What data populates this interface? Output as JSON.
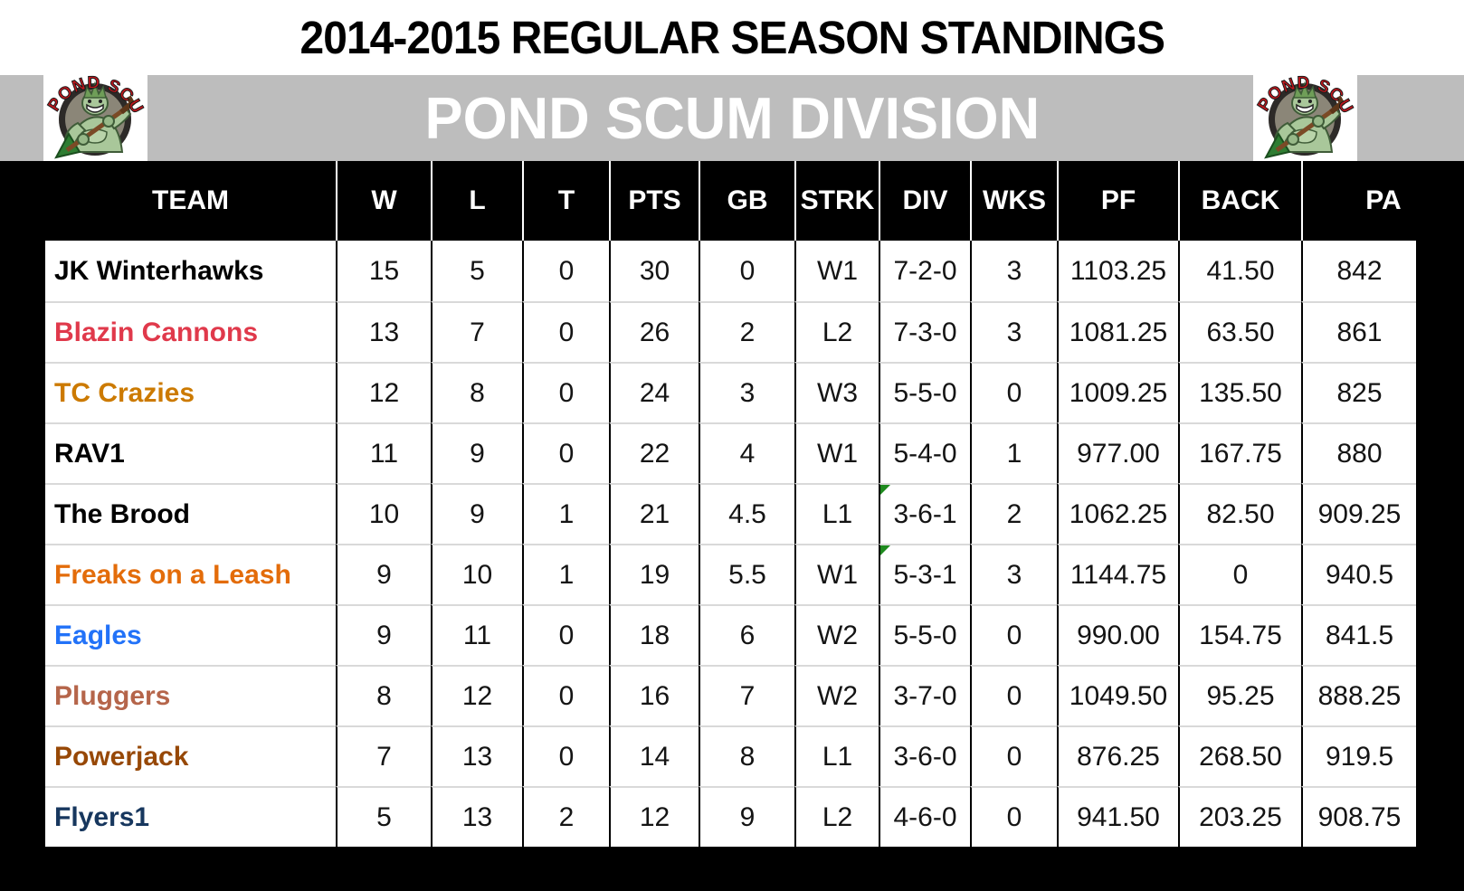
{
  "title": "2014-2015 REGULAR SEASON STANDINGS",
  "division": {
    "name": "POND SCUM DIVISION"
  },
  "logo": {
    "text": "POND SCUM"
  },
  "colors": {
    "band_gray": "#BDBDBD",
    "header_bg": "#000000",
    "header_text": "#FFFFFF",
    "grid_line_gray": "#D9D9D9",
    "grid_line_black": "#000000",
    "error_flag_green": "#1E8A1E",
    "logo_text_red": "#C4161C"
  },
  "table": {
    "columns": [
      "TEAM",
      "W",
      "L",
      "T",
      "PTS",
      "GB",
      "STRK",
      "DIV",
      "WKS",
      "PF",
      "BACK",
      "PA"
    ],
    "rows": [
      {
        "team": "JK Winterhawks",
        "color": "#000000",
        "w": "15",
        "l": "5",
        "t": "0",
        "pts": "30",
        "gb": "0",
        "strk": "W1",
        "div": "7-2-0",
        "wks": "3",
        "pf": "1103.25",
        "back": "41.50",
        "pa": "842",
        "div_flag": false
      },
      {
        "team": "Blazin Cannons",
        "color": "#E0394B",
        "w": "13",
        "l": "7",
        "t": "0",
        "pts": "26",
        "gb": "2",
        "strk": "L2",
        "div": "7-3-0",
        "wks": "3",
        "pf": "1081.25",
        "back": "63.50",
        "pa": "861",
        "div_flag": false
      },
      {
        "team": "TC Crazies",
        "color": "#CC7A00",
        "w": "12",
        "l": "8",
        "t": "0",
        "pts": "24",
        "gb": "3",
        "strk": "W3",
        "div": "5-5-0",
        "wks": "0",
        "pf": "1009.25",
        "back": "135.50",
        "pa": "825",
        "div_flag": false
      },
      {
        "team": "RAV1",
        "color": "#000000",
        "w": "11",
        "l": "9",
        "t": "0",
        "pts": "22",
        "gb": "4",
        "strk": "W1",
        "div": "5-4-0",
        "wks": "1",
        "pf": "977.00",
        "back": "167.75",
        "pa": "880",
        "div_flag": false
      },
      {
        "team": "The Brood",
        "color": "#000000",
        "w": "10",
        "l": "9",
        "t": "1",
        "pts": "21",
        "gb": "4.5",
        "strk": "L1",
        "div": "3-6-1",
        "wks": "2",
        "pf": "1062.25",
        "back": "82.50",
        "pa": "909.25",
        "div_flag": true
      },
      {
        "team": "Freaks on a Leash",
        "color": "#E36C0A",
        "w": "9",
        "l": "10",
        "t": "1",
        "pts": "19",
        "gb": "5.5",
        "strk": "W1",
        "div": "5-3-1",
        "wks": "3",
        "pf": "1144.75",
        "back": "0",
        "pa": "940.5",
        "div_flag": true
      },
      {
        "team": "Eagles",
        "color": "#2272F8",
        "w": "9",
        "l": "11",
        "t": "0",
        "pts": "18",
        "gb": "6",
        "strk": "W2",
        "div": "5-5-0",
        "wks": "0",
        "pf": "990.00",
        "back": "154.75",
        "pa": "841.5",
        "div_flag": false
      },
      {
        "team": "Pluggers",
        "color": "#B5654A",
        "w": "8",
        "l": "12",
        "t": "0",
        "pts": "16",
        "gb": "7",
        "strk": "W2",
        "div": "3-7-0",
        "wks": "0",
        "pf": "1049.50",
        "back": "95.25",
        "pa": "888.25",
        "div_flag": false
      },
      {
        "team": "Powerjack",
        "color": "#974806",
        "w": "7",
        "l": "13",
        "t": "0",
        "pts": "14",
        "gb": "8",
        "strk": "L1",
        "div": "3-6-0",
        "wks": "0",
        "pf": "876.25",
        "back": "268.50",
        "pa": "919.5",
        "div_flag": false
      },
      {
        "team": "Flyers1",
        "color": "#17375E",
        "w": "5",
        "l": "13",
        "t": "2",
        "pts": "12",
        "gb": "9",
        "strk": "L2",
        "div": "4-6-0",
        "wks": "0",
        "pf": "941.50",
        "back": "203.25",
        "pa": "908.75",
        "div_flag": false
      }
    ]
  }
}
